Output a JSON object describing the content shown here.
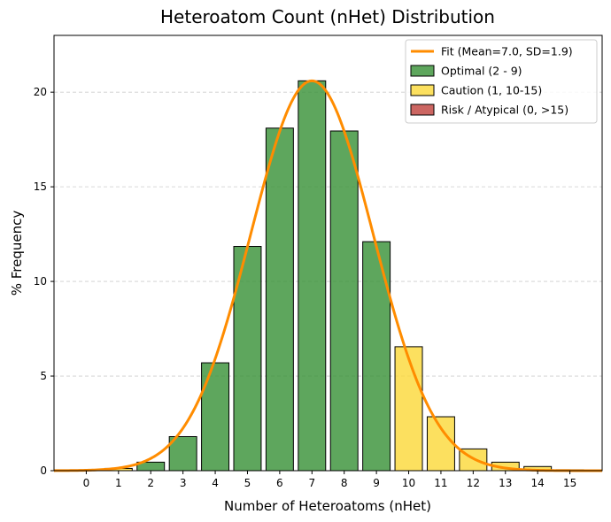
{
  "chart_data": {
    "type": "bar",
    "title": "Heteroatom Count (nHet) Distribution",
    "xlabel": "Number of Heteroatoms (nHet)",
    "ylabel": "% Frequency",
    "xlim": [
      -1,
      16
    ],
    "ylim": [
      0,
      23
    ],
    "x_ticks": [
      "0",
      "1",
      "2",
      "3",
      "4",
      "5",
      "6",
      "7",
      "8",
      "9",
      "10",
      "11",
      "12",
      "13",
      "14",
      "15"
    ],
    "y_ticks": [
      "0",
      "5",
      "10",
      "15",
      "20"
    ],
    "y_tick_values": [
      0,
      5,
      10,
      15,
      20
    ],
    "grid": "y-dashed",
    "bars": [
      {
        "x": 0,
        "value": 0.02,
        "category": "risk"
      },
      {
        "x": 1,
        "value": 0.12,
        "category": "caution"
      },
      {
        "x": 2,
        "value": 0.45,
        "category": "optimal"
      },
      {
        "x": 3,
        "value": 1.8,
        "category": "optimal"
      },
      {
        "x": 4,
        "value": 5.7,
        "category": "optimal"
      },
      {
        "x": 5,
        "value": 11.85,
        "category": "optimal"
      },
      {
        "x": 6,
        "value": 18.1,
        "category": "optimal"
      },
      {
        "x": 7,
        "value": 20.6,
        "category": "optimal"
      },
      {
        "x": 8,
        "value": 17.95,
        "category": "optimal"
      },
      {
        "x": 9,
        "value": 12.1,
        "category": "optimal"
      },
      {
        "x": 10,
        "value": 6.55,
        "category": "caution"
      },
      {
        "x": 11,
        "value": 2.85,
        "category": "caution"
      },
      {
        "x": 12,
        "value": 1.15,
        "category": "caution"
      },
      {
        "x": 13,
        "value": 0.45,
        "category": "caution"
      },
      {
        "x": 14,
        "value": 0.22,
        "category": "caution"
      },
      {
        "x": 15,
        "value": 0.05,
        "category": "caution"
      }
    ],
    "fit": {
      "label": "Fit (Mean=7.0, SD=1.9)",
      "mean": 7.0,
      "sd": 1.9,
      "peak": 20.6,
      "color": "#ff8c00"
    },
    "legend": {
      "placement": "top-right",
      "entries": [
        {
          "label": "Fit (Mean=7.0, SD=1.9)",
          "kind": "line",
          "color": "#ff8c00"
        },
        {
          "label": "Optimal (2 - 9)",
          "kind": "patch",
          "color": "#3a9339"
        },
        {
          "label": "Caution (1, 10-15)",
          "kind": "patch",
          "color": "#fbd93c"
        },
        {
          "label": "Risk / Atypical (0, >15)",
          "kind": "patch",
          "color": "#c1443f"
        }
      ]
    },
    "colors": {
      "optimal": "#3a9339",
      "caution": "#fbd93c",
      "risk": "#c1443f",
      "edge": "#000000",
      "grid": "#cccccc"
    }
  }
}
